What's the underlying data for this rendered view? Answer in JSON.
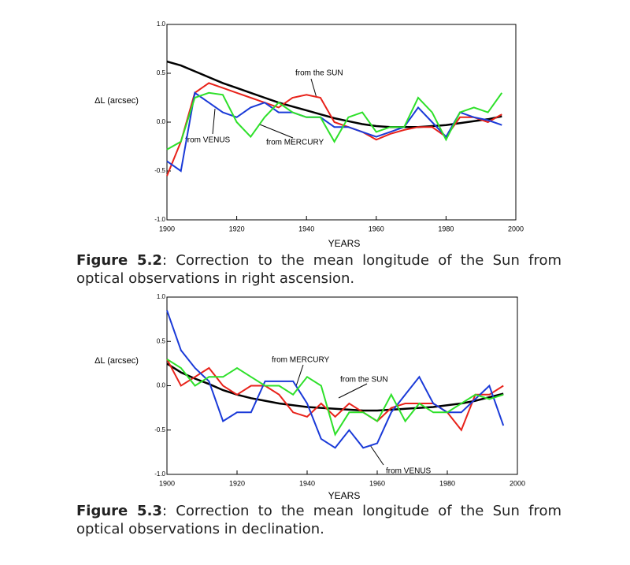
{
  "chart_data": [
    {
      "type": "line",
      "xlabel": "YEARS",
      "ylabel": "ΔL (arcsec)",
      "caption_number": "Figure 5.2",
      "caption_text": ": Correction to the mean longitude of the Sun from optical observations in right ascension.",
      "annotations": [
        "from the SUN",
        "from VENUS",
        "from MERCURY"
      ],
      "x": [
        1900,
        1904,
        1908,
        1912,
        1916,
        1920,
        1924,
        1928,
        1932,
        1936,
        1940,
        1944,
        1948,
        1952,
        1956,
        1960,
        1964,
        1968,
        1972,
        1976,
        1980,
        1984,
        1988,
        1992,
        1996
      ],
      "xlim": [
        1900,
        2000
      ],
      "xticks": [
        1900,
        1920,
        1940,
        1960,
        1980,
        2000
      ],
      "ylim": [
        -1,
        1
      ],
      "yticks": [
        {
          "value": -1,
          "label": "-1.0"
        },
        -0.5,
        {
          "value": 0,
          "label": "0.0"
        },
        0.5,
        {
          "value": 1,
          "label": "1.0"
        }
      ],
      "series": [
        {
          "color": "#000000",
          "values": [
            0.62,
            0.58,
            0.52,
            0.46,
            0.4,
            0.35,
            0.3,
            0.25,
            0.2,
            0.16,
            0.12,
            0.08,
            0.04,
            0.01,
            -0.02,
            -0.04,
            -0.05,
            -0.05,
            -0.05,
            -0.04,
            -0.03,
            -0.01,
            0.01,
            0.03,
            0.06
          ]
        },
        {
          "color": "#e8221a",
          "values": [
            -0.55,
            -0.2,
            0.3,
            0.4,
            0.35,
            0.3,
            0.25,
            0.2,
            0.15,
            0.25,
            0.28,
            0.25,
            0.0,
            -0.05,
            -0.1,
            -0.18,
            -0.12,
            -0.08,
            -0.05,
            -0.05,
            -0.15,
            0.05,
            0.05,
            0.0,
            0.08
          ]
        },
        {
          "color": "#1a3ad8",
          "values": [
            -0.4,
            -0.5,
            0.3,
            0.2,
            0.1,
            0.05,
            0.15,
            0.2,
            0.1,
            0.1,
            0.05,
            0.05,
            -0.05,
            -0.05,
            -0.1,
            -0.15,
            -0.1,
            -0.05,
            0.15,
            0.0,
            -0.15,
            0.1,
            0.05,
            0.02,
            -0.03
          ]
        },
        {
          "color": "#2ee02a",
          "values": [
            -0.28,
            -0.2,
            0.25,
            0.3,
            0.28,
            0.0,
            -0.15,
            0.05,
            0.2,
            0.1,
            0.05,
            0.05,
            -0.2,
            0.05,
            0.1,
            -0.1,
            -0.05,
            -0.05,
            0.25,
            0.1,
            -0.18,
            0.1,
            0.15,
            0.1,
            0.3
          ]
        }
      ]
    },
    {
      "type": "line",
      "xlabel": "YEARS",
      "ylabel": "ΔL (arcsec)",
      "caption_number": "Figure 5.3",
      "caption_text": ": Correction to the mean longitude of the Sun from optical observations in declination.",
      "annotations": [
        "from MERCURY",
        "from the SUN",
        "from VENUS"
      ],
      "x": [
        1900,
        1904,
        1908,
        1912,
        1916,
        1920,
        1924,
        1928,
        1932,
        1936,
        1940,
        1944,
        1948,
        1952,
        1956,
        1960,
        1964,
        1968,
        1972,
        1976,
        1980,
        1984,
        1988,
        1992,
        1996
      ],
      "xlim": [
        1900,
        2000
      ],
      "xticks": [
        1900,
        1920,
        1940,
        1960,
        1980,
        2000
      ],
      "ylim": [
        -1,
        1
      ],
      "yticks": [
        {
          "value": -1,
          "label": "-1.0"
        },
        -0.5,
        {
          "value": 0,
          "label": "0.0"
        },
        0.5,
        {
          "value": 1,
          "label": "1.0"
        }
      ],
      "series": [
        {
          "color": "#000000",
          "values": [
            0.25,
            0.15,
            0.08,
            0.02,
            -0.05,
            -0.1,
            -0.14,
            -0.17,
            -0.2,
            -0.22,
            -0.24,
            -0.25,
            -0.26,
            -0.27,
            -0.28,
            -0.28,
            -0.27,
            -0.26,
            -0.25,
            -0.24,
            -0.22,
            -0.2,
            -0.17,
            -0.13,
            -0.09
          ]
        },
        {
          "color": "#e8221a",
          "values": [
            0.3,
            0.0,
            0.1,
            0.2,
            0.0,
            -0.1,
            0.0,
            0.0,
            -0.1,
            -0.3,
            -0.35,
            -0.2,
            -0.35,
            -0.2,
            -0.3,
            -0.4,
            -0.25,
            -0.2,
            -0.2,
            -0.2,
            -0.3,
            -0.5,
            -0.1,
            -0.1,
            0.0
          ]
        },
        {
          "color": "#1a3ad8",
          "values": [
            0.85,
            0.4,
            0.2,
            0.05,
            -0.4,
            -0.3,
            -0.3,
            0.05,
            0.05,
            0.05,
            -0.2,
            -0.6,
            -0.7,
            -0.5,
            -0.7,
            -0.65,
            -0.3,
            -0.1,
            0.1,
            -0.2,
            -0.3,
            -0.3,
            -0.15,
            0.0,
            -0.45
          ]
        },
        {
          "color": "#2ee02a",
          "values": [
            0.3,
            0.2,
            0.0,
            0.1,
            0.1,
            0.2,
            0.1,
            0.0,
            0.0,
            -0.1,
            0.1,
            0.0,
            -0.55,
            -0.3,
            -0.3,
            -0.4,
            -0.1,
            -0.4,
            -0.2,
            -0.3,
            -0.3,
            -0.2,
            -0.1,
            -0.15,
            -0.1
          ]
        }
      ]
    }
  ]
}
